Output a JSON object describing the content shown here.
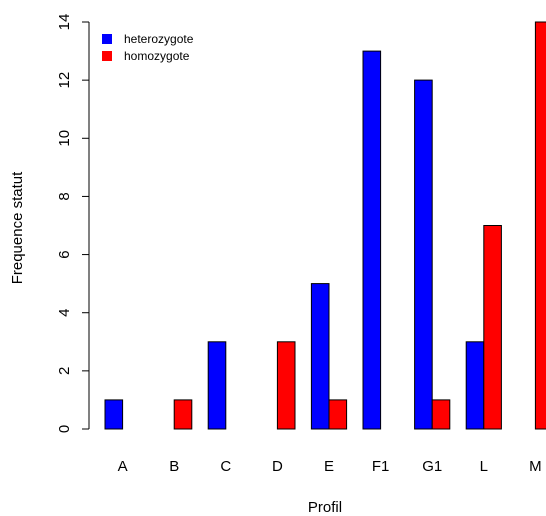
{
  "chart_data": {
    "type": "bar",
    "categories": [
      "A",
      "B",
      "C",
      "D",
      "E",
      "F1",
      "G1",
      "L",
      "M"
    ],
    "series": [
      {
        "name": "heterozygote",
        "color": "#0000FF",
        "values": [
          1,
          0,
          3,
          0,
          5,
          13,
          12,
          3,
          0
        ]
      },
      {
        "name": "homozygote",
        "color": "#FF0000",
        "values": [
          0,
          1,
          0,
          3,
          1,
          0,
          1,
          7,
          14
        ]
      }
    ],
    "title": "",
    "xlabel": "Profil",
    "ylabel": "Frequence statut",
    "ylim": [
      0,
      14
    ],
    "yticks": [
      "0",
      "2",
      "4",
      "6",
      "8",
      "10",
      "12",
      "14"
    ],
    "legend_position": "top-left",
    "grid": false,
    "bar_style": "grouped"
  }
}
